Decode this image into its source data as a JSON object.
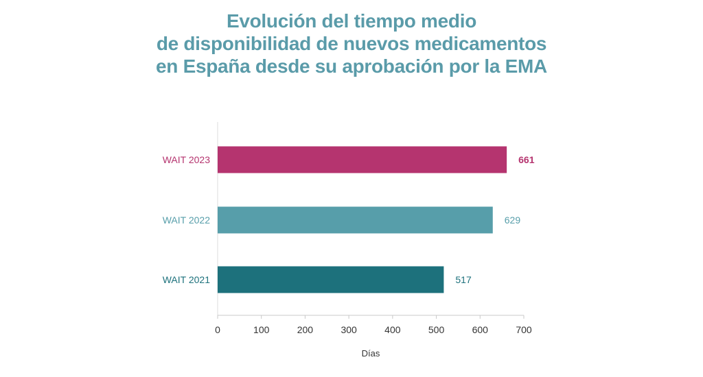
{
  "title_lines": [
    "Evolución del tiempo medio",
    "de disponibilidad de nuevos medicamentos",
    "en España desde su aprobación por la EMA"
  ],
  "chart_data": {
    "type": "bar",
    "orientation": "horizontal",
    "title": "Evolución del tiempo medio de disponibilidad de nuevos medicamentos en España desde su aprobación por la EMA",
    "xlabel": "Días",
    "ylabel": "",
    "categories": [
      "WAIT 2023",
      "WAIT 2022",
      "WAIT 2021"
    ],
    "values": [
      661,
      629,
      517
    ],
    "value_labels": [
      "661",
      "629",
      "517"
    ],
    "colors": [
      "#b5346f",
      "#579eaa",
      "#1d717c"
    ],
    "label_colors": [
      "#b5346f",
      "#579eaa",
      "#1d717c"
    ],
    "value_label_bold": [
      true,
      false,
      false
    ],
    "xlim": [
      0,
      700
    ],
    "xticks": [
      0,
      100,
      200,
      300,
      400,
      500,
      600,
      700
    ],
    "grid": false
  }
}
